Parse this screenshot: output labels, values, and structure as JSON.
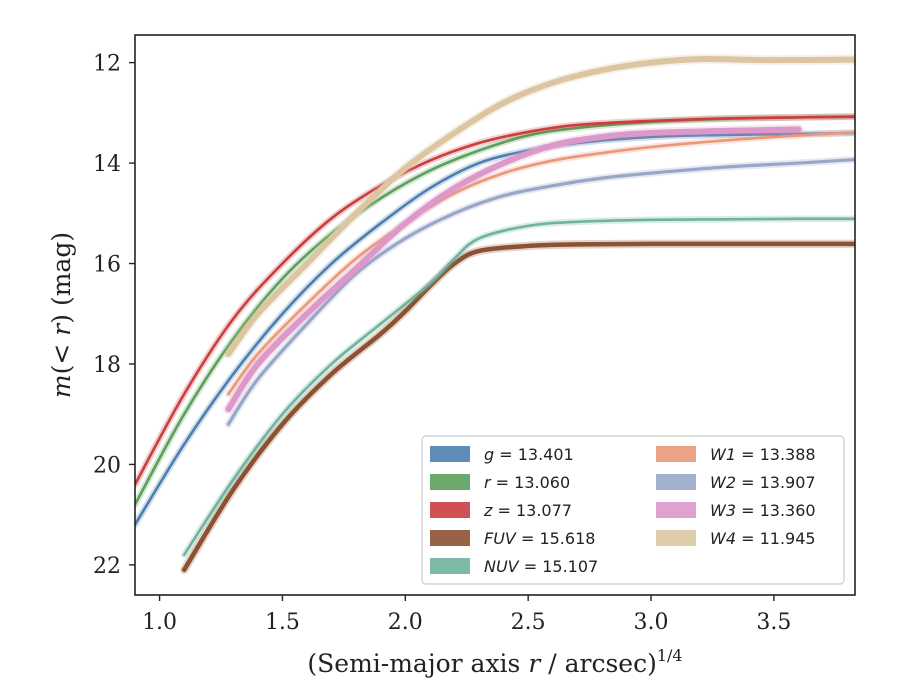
{
  "chart_data": {
    "type": "line",
    "title": "",
    "xlabel": "(Semi-major axis r / arcsec)",
    "xlabel_var": "r",
    "xlabel_pre": "(Semi-major axis ",
    "xlabel_post": " / arcsec)",
    "xlabel_sup": "1/4",
    "ylabel_pre": "m(< ",
    "ylabel_var": "r",
    "ylabel_post": ") (mag)",
    "xlim": [
      0.9,
      3.83
    ],
    "ylim": [
      22.6,
      11.45
    ],
    "y_inverted": true,
    "xticks": [
      1.0,
      1.5,
      2.0,
      2.5,
      3.0,
      3.5
    ],
    "xtick_labels": [
      "1.0",
      "1.5",
      "2.0",
      "2.5",
      "3.0",
      "3.5"
    ],
    "yticks": [
      12,
      14,
      16,
      18,
      20,
      22
    ],
    "ytick_labels": [
      "12",
      "14",
      "16",
      "18",
      "20",
      "22"
    ],
    "grid": false,
    "legend_position": "lower-right",
    "series": [
      {
        "name": "g",
        "value_label": "13.401",
        "color": "#4c7fb0",
        "width": 2.6,
        "x": [
          0.9,
          1.1,
          1.3,
          1.5,
          1.7,
          1.9,
          2.1,
          2.3,
          2.5,
          2.7,
          3.0,
          3.3,
          3.6,
          3.83
        ],
        "y": [
          21.2,
          19.6,
          18.2,
          17.0,
          16.0,
          15.2,
          14.5,
          14.0,
          13.75,
          13.6,
          13.48,
          13.44,
          13.42,
          13.4
        ]
      },
      {
        "name": "r",
        "value_label": "13.060",
        "color": "#5ca05a",
        "width": 2.6,
        "x": [
          0.9,
          1.1,
          1.3,
          1.5,
          1.7,
          1.9,
          2.1,
          2.3,
          2.5,
          2.7,
          3.0,
          3.3,
          3.6,
          3.83
        ],
        "y": [
          20.8,
          19.0,
          17.5,
          16.3,
          15.4,
          14.7,
          14.15,
          13.75,
          13.45,
          13.3,
          13.18,
          13.12,
          13.09,
          13.07
        ]
      },
      {
        "name": "z",
        "value_label": "13.077",
        "color": "#cc3d3e",
        "width": 2.6,
        "x": [
          0.9,
          1.1,
          1.3,
          1.5,
          1.7,
          1.9,
          2.1,
          2.3,
          2.5,
          2.7,
          3.0,
          3.3,
          3.6,
          3.83
        ],
        "y": [
          20.4,
          18.6,
          17.1,
          16.0,
          15.1,
          14.45,
          13.95,
          13.6,
          13.38,
          13.24,
          13.16,
          13.11,
          13.09,
          13.08
        ]
      },
      {
        "name": "FUV",
        "value_label": "15.618",
        "color": "#8b5232",
        "width": 4.5,
        "x": [
          1.1,
          1.3,
          1.5,
          1.7,
          1.9,
          2.0,
          2.1,
          2.2,
          2.3,
          2.5,
          2.7,
          3.0,
          3.17,
          3.5,
          3.83
        ],
        "y": [
          22.1,
          20.5,
          19.2,
          18.2,
          17.4,
          16.95,
          16.45,
          16.0,
          15.75,
          15.65,
          15.62,
          15.61,
          15.61,
          15.61,
          15.61
        ]
      },
      {
        "name": "NUV",
        "value_label": "15.107",
        "color": "#6fb49b",
        "width": 2.6,
        "x": [
          1.1,
          1.3,
          1.5,
          1.7,
          1.9,
          2.1,
          2.2,
          2.3,
          2.5,
          2.7,
          3.0,
          3.3,
          3.6,
          3.83
        ],
        "y": [
          21.8,
          20.3,
          19.0,
          18.0,
          17.2,
          16.4,
          15.9,
          15.5,
          15.25,
          15.17,
          15.13,
          15.12,
          15.11,
          15.11
        ]
      },
      {
        "name": "W1",
        "value_label": "13.388",
        "color": "#eb977a",
        "width": 2.6,
        "x": [
          1.28,
          1.4,
          1.6,
          1.8,
          2.0,
          2.2,
          2.4,
          2.6,
          2.8,
          3.0,
          3.3,
          3.6,
          3.83
        ],
        "y": [
          18.6,
          17.8,
          16.8,
          15.9,
          15.2,
          14.6,
          14.2,
          13.95,
          13.8,
          13.68,
          13.55,
          13.45,
          13.39
        ]
      },
      {
        "name": "W2",
        "value_label": "13.907",
        "color": "#98a6c8",
        "width": 3.2,
        "x": [
          1.28,
          1.4,
          1.6,
          1.8,
          2.0,
          2.2,
          2.4,
          2.6,
          2.8,
          3.0,
          3.3,
          3.6,
          3.83
        ],
        "y": [
          19.2,
          18.3,
          17.2,
          16.2,
          15.5,
          15.0,
          14.65,
          14.45,
          14.3,
          14.2,
          14.08,
          14.0,
          13.93
        ]
      },
      {
        "name": "W3",
        "value_label": "13.360",
        "color": "#dc98c9",
        "width": 6.0,
        "x": [
          1.28,
          1.4,
          1.6,
          1.8,
          2.0,
          2.2,
          2.4,
          2.6,
          2.8,
          3.0,
          3.3,
          3.6
        ],
        "y": [
          18.9,
          18.0,
          17.0,
          16.1,
          15.2,
          14.5,
          14.0,
          13.65,
          13.48,
          13.4,
          13.36,
          13.33
        ]
      },
      {
        "name": "W4",
        "value_label": "11.945",
        "color": "#dcc6a2",
        "width": 6.0,
        "x": [
          1.28,
          1.4,
          1.6,
          1.8,
          2.0,
          2.2,
          2.4,
          2.6,
          2.8,
          3.0,
          3.2,
          3.48,
          3.83
        ],
        "y": [
          17.8,
          17.0,
          16.0,
          15.0,
          14.1,
          13.4,
          12.8,
          12.4,
          12.15,
          12.0,
          11.93,
          11.95,
          11.94
        ]
      }
    ]
  }
}
